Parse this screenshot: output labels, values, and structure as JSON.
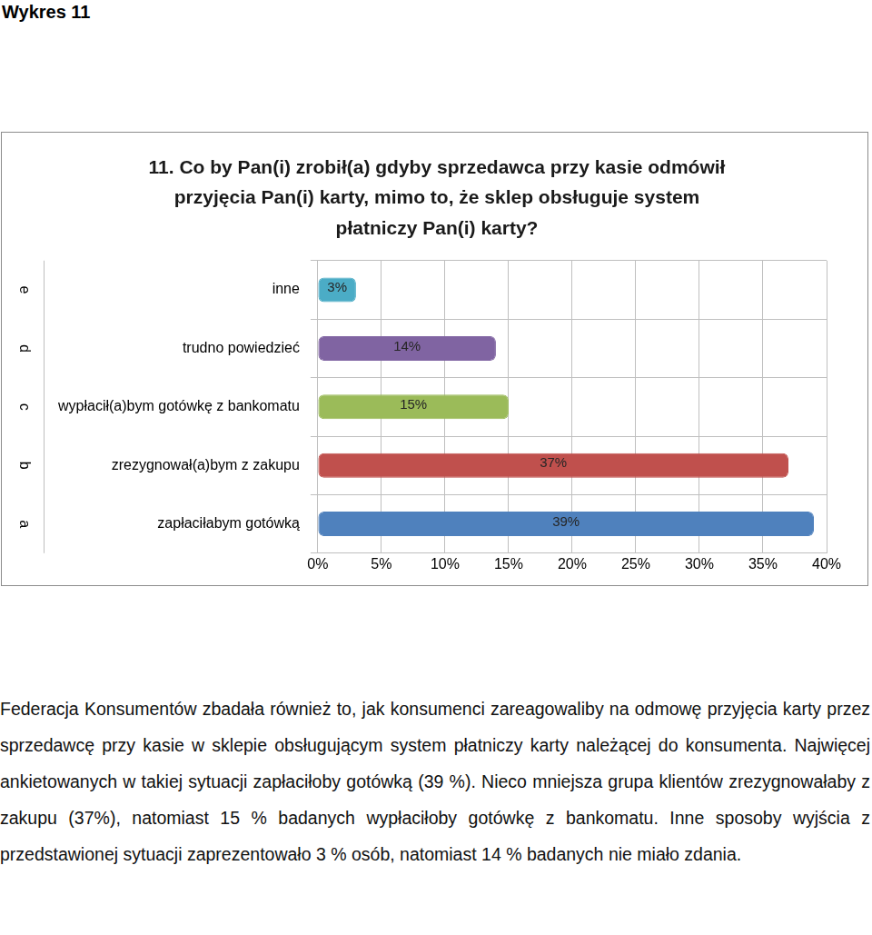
{
  "header": "Wykres 11",
  "chart_data": {
    "type": "bar",
    "orientation": "horizontal",
    "title": [
      "11. Co by Pan(i) zrobił(a) gdyby sprzedawca przy kasie odmówił",
      "przyjęcia Pan(i) karty, mimo to, że sklep obsługuje system",
      "płatniczy Pan(i) karty?"
    ],
    "letters": [
      "e",
      "d",
      "c",
      "b",
      "a"
    ],
    "categories": [
      "inne",
      "trudno powiedzieć",
      "wypłacił(a)bym gotówkę z bankomatu",
      "zrezygnował(a)bym z zakupu",
      "zapłaciłabym gotówką"
    ],
    "values": [
      3,
      14,
      15,
      37,
      39
    ],
    "value_labels": [
      "3%",
      "14%",
      "15%",
      "37%",
      "39%"
    ],
    "colors": [
      "#4bacc6",
      "#8064a2",
      "#9bbb59",
      "#c0504d",
      "#4f81bd"
    ],
    "data_labels": true,
    "xlim": [
      0,
      40
    ],
    "xticks": [
      {
        "value": 0,
        "label": "0%"
      },
      {
        "value": 5,
        "label": "5%"
      },
      {
        "value": 10,
        "label": "10%"
      },
      {
        "value": 15,
        "label": "15%"
      },
      {
        "value": 20,
        "label": "20%"
      },
      {
        "value": 25,
        "label": "25%"
      },
      {
        "value": 30,
        "label": "30%"
      },
      {
        "value": 35,
        "label": "35%"
      },
      {
        "value": 40,
        "label": "40%"
      }
    ],
    "grid": true
  },
  "paragraph": "Federacja Konsumentów zbadała również to, jak konsumenci zareagowaliby na odmowę przyjęcia karty przez sprzedawcę przy kasie w sklepie obsługującym system płatniczy karty należącej do konsumenta. Najwięcej ankietowanych w takiej sytuacji zapłaciłoby gotówką (39 %). Nieco mniejsza grupa klientów zrezygnowałaby z zakupu (37%), natomiast 15 % badanych wypłaciłoby gotówkę z bankomatu. Inne sposoby wyjścia z przedstawionej sytuacji zaprezentowało 3 % osób, natomiast 14 % badanych nie miało zdania."
}
